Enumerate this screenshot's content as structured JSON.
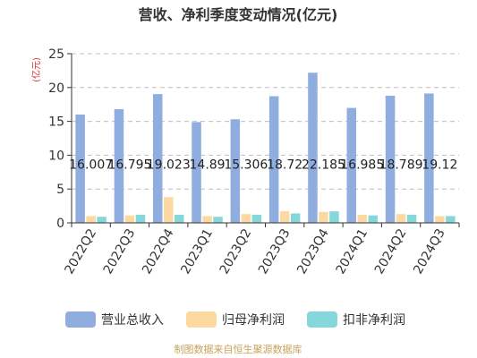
{
  "chart_data": {
    "type": "bar",
    "title": "营收、净利季度变动情况(亿元)",
    "ylabel": "(亿元)",
    "xlabel": "",
    "ylim": [
      0,
      25
    ],
    "yticks": [
      0,
      5,
      10,
      15,
      20,
      25
    ],
    "grid": true,
    "legend_position": "bottom",
    "categories": [
      "2022Q2",
      "2022Q3",
      "2022Q4",
      "2023Q1",
      "2023Q2",
      "2023Q3",
      "2023Q4",
      "2024Q1",
      "2024Q2",
      "2024Q3"
    ],
    "series": [
      {
        "name": "营业总收入",
        "color": "#8fadde",
        "values": [
          16.007,
          16.795,
          19.023,
          14.89,
          15.306,
          18.72,
          22.185,
          16.985,
          18.789,
          19.12
        ],
        "data_labels": [
          "16.007",
          "16.795",
          "19.023",
          "14.89",
          "15.306",
          "18.72",
          "22.185",
          "16.985",
          "18.789",
          "19.12"
        ]
      },
      {
        "name": "归母净利润",
        "color": "#fcd9a0",
        "values": [
          1.0,
          1.1,
          3.8,
          1.0,
          1.3,
          1.7,
          1.6,
          1.2,
          1.3,
          1.0
        ]
      },
      {
        "name": "扣非净利润",
        "color": "#86d7d9",
        "values": [
          0.9,
          1.2,
          1.2,
          0.9,
          1.2,
          1.4,
          1.7,
          1.1,
          1.2,
          1.0
        ]
      }
    ],
    "source": "制图数据来自恒生聚源数据库"
  }
}
